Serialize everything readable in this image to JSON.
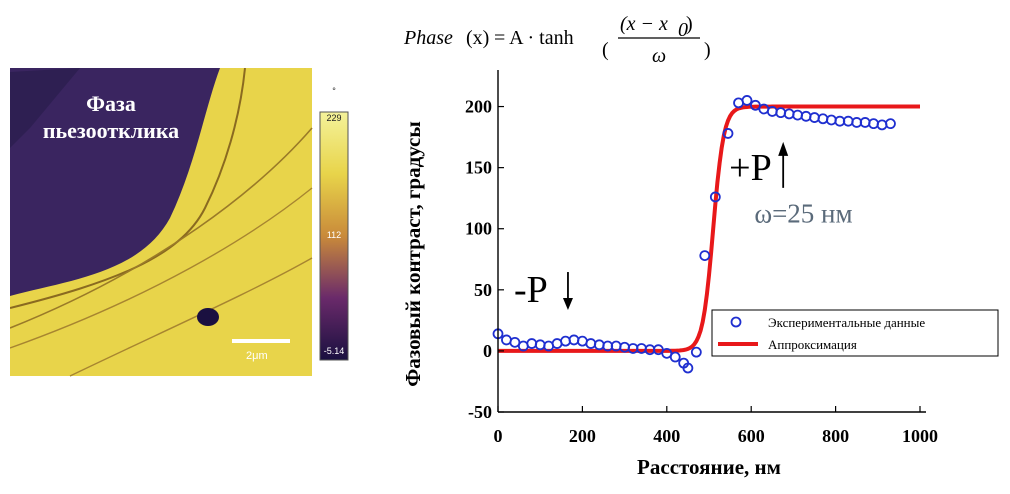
{
  "afm": {
    "title_line1": "Фаза",
    "title_line2": "пьезоотклика",
    "colorbar_max": "229",
    "colorbar_mid": "112",
    "colorbar_min": "-5.14",
    "colorbar_unit": "°",
    "scale_bar": "2μm",
    "colors": {
      "background": "#3a2560",
      "domain": "#e8d44a",
      "dark": "#1a1040"
    }
  },
  "formula": {
    "lhs": "Phase",
    "lhs_arg": "(x)",
    "eq": " = A · tanh",
    "numerator": "(x − x",
    "numerator_sub": "0",
    "numerator_close": ")",
    "denominator": "ω"
  },
  "chart_data": {
    "type": "scatter",
    "xlabel": "Расстояние, нм",
    "ylabel": "Фазовый контраст, градусы",
    "xlim": [
      0,
      1000
    ],
    "ylim": [
      -50,
      225
    ],
    "xticks": [
      "0",
      "200",
      "400",
      "600",
      "800",
      "1000"
    ],
    "yticks": [
      "-50",
      "0",
      "50",
      "100",
      "150",
      "200"
    ],
    "series": [
      {
        "name": "Экспериментальные данные",
        "marker": "open-circle",
        "color": "#1f2fd0",
        "points": [
          [
            0,
            14
          ],
          [
            20,
            9
          ],
          [
            40,
            7
          ],
          [
            60,
            4
          ],
          [
            80,
            6
          ],
          [
            100,
            5
          ],
          [
            120,
            4
          ],
          [
            140,
            6
          ],
          [
            160,
            8
          ],
          [
            180,
            9
          ],
          [
            200,
            8
          ],
          [
            220,
            6
          ],
          [
            240,
            5
          ],
          [
            260,
            4
          ],
          [
            280,
            4
          ],
          [
            300,
            3
          ],
          [
            320,
            2
          ],
          [
            340,
            2
          ],
          [
            360,
            1
          ],
          [
            380,
            1
          ],
          [
            400,
            -2
          ],
          [
            420,
            -5
          ],
          [
            440,
            -10
          ],
          [
            450,
            -14
          ],
          [
            470,
            -1
          ],
          [
            490,
            78
          ],
          [
            515,
            126
          ],
          [
            545,
            178
          ],
          [
            570,
            203
          ],
          [
            590,
            205
          ],
          [
            610,
            201
          ],
          [
            630,
            198
          ],
          [
            650,
            196
          ],
          [
            670,
            195
          ],
          [
            690,
            194
          ],
          [
            710,
            193
          ],
          [
            730,
            192
          ],
          [
            750,
            191
          ],
          [
            770,
            190
          ],
          [
            790,
            189
          ],
          [
            810,
            188
          ],
          [
            830,
            188
          ],
          [
            850,
            187
          ],
          [
            870,
            187
          ],
          [
            890,
            186
          ],
          [
            910,
            185
          ],
          [
            930,
            186
          ]
        ]
      },
      {
        "name": "Аппроксимация",
        "type": "line",
        "color": "#e8181a",
        "model": {
          "A": 100,
          "x0": 510,
          "omega": 25,
          "offset": 100
        }
      }
    ],
    "annotations": [
      {
        "text": "-P",
        "x": 180,
        "y": 40,
        "arrow": "down"
      },
      {
        "text": "+P",
        "x": 690,
        "y": 140,
        "arrow": "up"
      },
      {
        "text": "ω=25 нм",
        "x": 560,
        "y": 105
      }
    ]
  }
}
